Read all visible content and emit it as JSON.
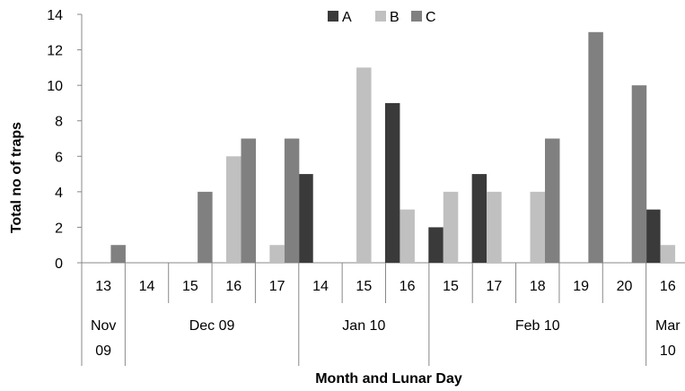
{
  "chart_data": {
    "type": "bar",
    "title": "",
    "xlabel": "Month and Lunar Day",
    "ylabel": "Total no of traps",
    "ylim": [
      0,
      14
    ],
    "yticks": [
      "0",
      "2",
      "4",
      "6",
      "8",
      "10",
      "12",
      "14"
    ],
    "grid": false,
    "legend_position": "top-center",
    "categories": [
      "13",
      "14",
      "15",
      "16",
      "17",
      "14",
      "15",
      "16",
      "15",
      "17",
      "18",
      "19",
      "20",
      "16"
    ],
    "month_groups": [
      {
        "label_line1": "Nov",
        "label_line2": "09",
        "span": 1
      },
      {
        "label_line1": "Dec 09",
        "label_line2": "",
        "span": 4
      },
      {
        "label_line1": "Jan 10",
        "label_line2": "",
        "span": 3
      },
      {
        "label_line1": "Feb 10",
        "label_line2": "",
        "span": 5
      },
      {
        "label_line1": "Mar",
        "label_line2": "10",
        "span": 1
      }
    ],
    "series": [
      {
        "name": "A",
        "color": "#3a3a3a",
        "values": [
          0,
          0,
          0,
          0,
          0,
          5,
          0,
          9,
          2,
          5,
          0,
          0,
          0,
          3
        ]
      },
      {
        "name": "B",
        "color": "#c0c0c0",
        "values": [
          0,
          0,
          0,
          6,
          1,
          0,
          11,
          3,
          4,
          4,
          4,
          0,
          0,
          1
        ]
      },
      {
        "name": "C",
        "color": "#808080",
        "values": [
          1,
          0,
          4,
          7,
          7,
          0,
          0,
          0,
          0,
          0,
          7,
          13,
          10,
          0
        ]
      }
    ]
  }
}
